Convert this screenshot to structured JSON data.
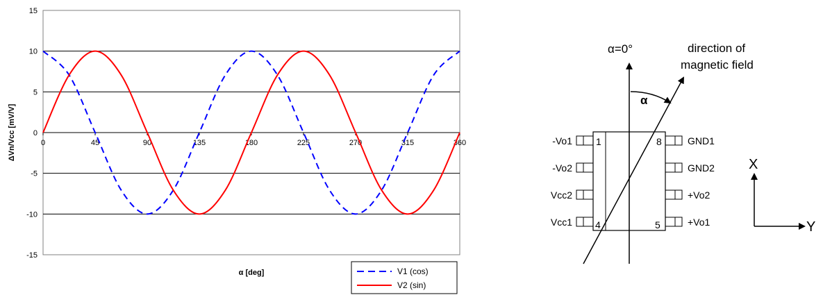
{
  "chart_data": {
    "type": "line",
    "xlabel": "α [deg]",
    "ylabel": "ΔVn/Vcc [mV/V]",
    "xlim": [
      0,
      360
    ],
    "ylim": [
      -15,
      15
    ],
    "x_ticks": [
      "0",
      "45",
      "90",
      "135",
      "180",
      "225",
      "270",
      "315",
      "360"
    ],
    "y_ticks": [
      "15",
      "10",
      "5",
      "0",
      "-5",
      "-10",
      "-15"
    ],
    "grid": "horizontal",
    "legend_position": "bottom-right",
    "x": [
      0,
      22.5,
      45,
      67.5,
      90,
      112.5,
      135,
      157.5,
      180,
      202.5,
      225,
      247.5,
      270,
      292.5,
      315,
      337.5,
      360
    ],
    "series": [
      {
        "name": "V1 (cos)",
        "color": "#0000ff",
        "style": "dashed",
        "values": [
          10,
          7.07,
          0,
          -7.07,
          -10,
          -7.07,
          0,
          7.07,
          10,
          7.07,
          0,
          -7.07,
          -10,
          -7.07,
          0,
          7.07,
          10
        ]
      },
      {
        "name": "V2 (sin)",
        "color": "#ff0000",
        "style": "solid",
        "values": [
          0,
          7.07,
          10,
          7.07,
          0,
          -7.07,
          -10,
          -7.07,
          0,
          7.07,
          10,
          7.07,
          0,
          -7.07,
          -10,
          -7.07,
          0
        ]
      }
    ]
  },
  "diagram": {
    "alpha_zero_label": "α=0°",
    "field_label_line1": "direction of",
    "field_label_line2": "magnetic field",
    "alpha_label": "α",
    "pins_left": [
      "-Vo1",
      "-Vo2",
      "Vcc2",
      "Vcc1"
    ],
    "pins_right": [
      "GND1",
      "GND2",
      "+Vo2",
      "+Vo1"
    ],
    "pin_numbers": {
      "top_left": "1",
      "top_right": "8",
      "bottom_left": "4",
      "bottom_right": "5"
    },
    "axis_x": "X",
    "axis_y": "Y"
  }
}
